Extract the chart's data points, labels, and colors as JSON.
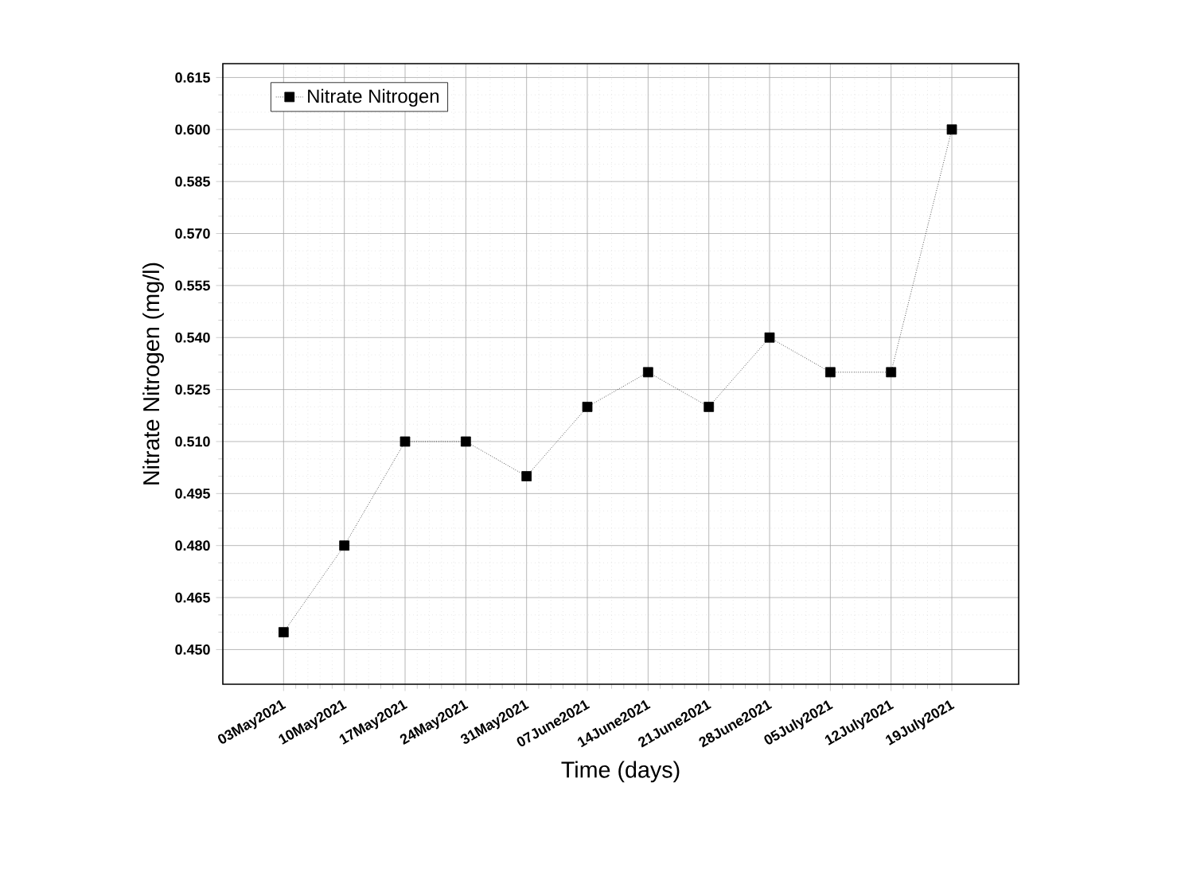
{
  "chart_data": {
    "type": "line",
    "xlabel": "Time (days)",
    "ylabel": "Nitrate Nitrogen (mg/l)",
    "categories": [
      "03May2021",
      "10May2021",
      "17May2021",
      "24May2021",
      "31May2021",
      "07June2021",
      "14June2021",
      "21June2021",
      "28June2021",
      "05July2021",
      "12July2021",
      "19July2021"
    ],
    "series": [
      {
        "name": "Nitrate Nitrogen",
        "color": "#000000",
        "values": [
          0.455,
          0.48,
          0.51,
          0.51,
          0.5,
          0.52,
          0.53,
          0.52,
          0.54,
          0.53,
          0.53,
          0.6
        ]
      }
    ],
    "ylim": [
      0.44,
      0.619
    ],
    "yticks": [
      {
        "value": 0.45,
        "label": "0.450"
      },
      {
        "value": 0.465,
        "label": "0.465"
      },
      {
        "value": 0.48,
        "label": "0.480"
      },
      {
        "value": 0.495,
        "label": "0.495"
      },
      {
        "value": 0.51,
        "label": "0.510"
      },
      {
        "value": 0.525,
        "label": "0.525"
      },
      {
        "value": 0.54,
        "label": "0.540"
      },
      {
        "value": 0.555,
        "label": "0.555"
      },
      {
        "value": 0.57,
        "label": "0.570"
      },
      {
        "value": 0.585,
        "label": "0.585"
      },
      {
        "value": 0.6,
        "label": "0.600"
      },
      {
        "value": 0.615,
        "label": "0.615"
      }
    ],
    "grid": true,
    "legend": "top left",
    "marker": "square",
    "line_style": "dotted"
  }
}
